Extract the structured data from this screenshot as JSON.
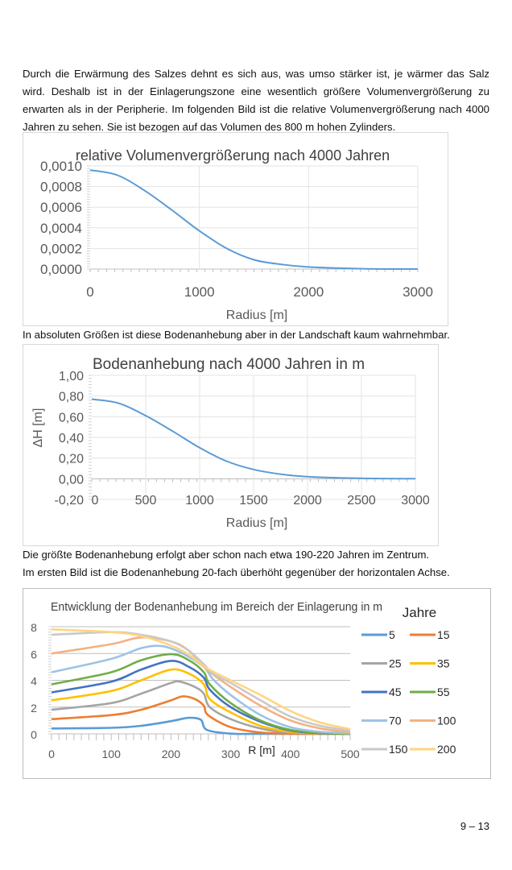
{
  "paragraph1": "Durch die Erwärmung des Salzes dehnt es sich aus, was umso stärker ist, je wärmer das Salz wird. Deshalb ist in der Einlagerungszone eine wesentlich größere Volumenvergrößerung zu erwarten als in der Peripherie. Im folgenden Bild ist die relative Volumenvergrößerung nach 4000 Jahren zu sehen. Sie ist bezogen auf das Volumen des 800 m hohen Zylinders.",
  "paragraph2": "In absoluten Größen ist diese Bodenanhebung aber in der Landschaft kaum wahrnehmbar.",
  "paragraph3a": "Die größte Bodenanhebung erfolgt aber schon nach etwa 190-220 Jahren im Zentrum.",
  "paragraph3b": "Im ersten Bild ist die Bodenanhebung 20-fach überhöht gegenüber der horizontalen Achse.",
  "page_number": "9 – 13",
  "chart_data": [
    {
      "type": "line",
      "title": "relative Volumenvergrößerung  nach 4000 Jahren",
      "xlabel": "Radius [m]",
      "ylabel": "",
      "xlim": [
        0,
        3000
      ],
      "ylim": [
        0,
        0.001
      ],
      "xticks": [
        "0",
        "1000",
        "2000",
        "3000"
      ],
      "yticks": [
        "0,0000",
        "0,0002",
        "0,0004",
        "0,0006",
        "0,0008",
        "0,0010"
      ],
      "grid": true,
      "color": "#5b9bd5",
      "x": [
        0,
        250,
        500,
        750,
        1000,
        1250,
        1500,
        1750,
        2000,
        2500,
        3000
      ],
      "y": [
        0.00096,
        0.00091,
        0.00076,
        0.00057,
        0.00037,
        0.0002,
        9e-05,
        4.5e-05,
        2e-05,
        3e-06,
        0
      ]
    },
    {
      "type": "line",
      "title": "Bodenanhebung  nach 4000 Jahren in m",
      "xlabel": "Radius [m]",
      "ylabel": "ΔH [m]",
      "xlim": [
        0,
        3000
      ],
      "ylim": [
        -0.2,
        1.0
      ],
      "xticks": [
        "0",
        "500",
        "1000",
        "1500",
        "2000",
        "2500",
        "3000"
      ],
      "yticks": [
        "-0,20",
        "0,00",
        "0,20",
        "0,40",
        "0,60",
        "0,80",
        "1,00"
      ],
      "grid": true,
      "color": "#5b9bd5",
      "x": [
        0,
        250,
        500,
        750,
        1000,
        1250,
        1500,
        1750,
        2000,
        2500,
        3000
      ],
      "y": [
        0.77,
        0.73,
        0.61,
        0.46,
        0.3,
        0.17,
        0.09,
        0.045,
        0.02,
        0.004,
        0
      ]
    },
    {
      "type": "line",
      "title": "Entwicklung der Bodenanhebung  im Bereich der Einlagerung in m",
      "xlabel": "R [m]",
      "ylabel": "",
      "xlim": [
        0,
        500
      ],
      "ylim": [
        0,
        8
      ],
      "xticks": [
        "0",
        "100",
        "200",
        "300",
        "400",
        "500"
      ],
      "yticks": [
        "0",
        "2",
        "4",
        "6",
        "8"
      ],
      "grid": true,
      "legend_title": "Jahre",
      "legend": "right",
      "series": [
        {
          "name": "5",
          "color": "#5b9bd5",
          "x": [
            0,
            100,
            150,
            200,
            230,
            250,
            260,
            300,
            350,
            500
          ],
          "y": [
            0.4,
            0.45,
            0.6,
            0.95,
            1.2,
            1.05,
            0.3,
            0.02,
            0,
            0
          ]
        },
        {
          "name": "15",
          "color": "#ed7d31",
          "x": [
            0,
            100,
            150,
            200,
            220,
            240,
            255,
            262,
            300,
            350,
            400,
            500
          ],
          "y": [
            1.1,
            1.4,
            1.8,
            2.5,
            2.8,
            2.6,
            2.1,
            1.4,
            0.5,
            0.1,
            0.02,
            0
          ]
        },
        {
          "name": "25",
          "color": "#a5a5a5",
          "x": [
            0,
            100,
            150,
            200,
            215,
            240,
            255,
            265,
            300,
            350,
            400,
            500
          ],
          "y": [
            1.8,
            2.3,
            3.0,
            3.8,
            3.9,
            3.5,
            3.0,
            2.0,
            1.1,
            0.4,
            0.1,
            0
          ]
        },
        {
          "name": "35",
          "color": "#ffc000",
          "x": [
            0,
            100,
            150,
            200,
            230,
            255,
            265,
            300,
            350,
            400,
            450,
            500
          ],
          "y": [
            2.5,
            3.2,
            4.0,
            4.8,
            4.5,
            3.7,
            2.6,
            1.6,
            0.6,
            0.15,
            0.03,
            0
          ]
        },
        {
          "name": "45",
          "color": "#4472c4",
          "x": [
            0,
            100,
            150,
            200,
            230,
            255,
            265,
            300,
            350,
            400,
            450,
            500
          ],
          "y": [
            3.1,
            3.9,
            4.8,
            5.45,
            5.0,
            4.2,
            3.3,
            2.0,
            0.9,
            0.25,
            0.05,
            0
          ]
        },
        {
          "name": "55",
          "color": "#70ad47",
          "x": [
            0,
            100,
            150,
            200,
            230,
            255,
            265,
            300,
            350,
            400,
            450,
            500
          ],
          "y": [
            3.7,
            4.6,
            5.5,
            5.95,
            5.5,
            4.6,
            3.7,
            2.3,
            1.0,
            0.3,
            0.07,
            0
          ]
        },
        {
          "name": "70",
          "color": "#9dc3e6",
          "x": [
            0,
            100,
            150,
            185,
            220,
            255,
            270,
            300,
            350,
            400,
            450,
            500
          ],
          "y": [
            4.6,
            5.6,
            6.4,
            6.55,
            6.0,
            5.0,
            4.1,
            2.9,
            1.4,
            0.5,
            0.15,
            0.05
          ]
        },
        {
          "name": "100",
          "color": "#f4b183",
          "x": [
            0,
            100,
            150,
            200,
            230,
            260,
            300,
            350,
            400,
            450,
            500
          ],
          "y": [
            6.0,
            6.7,
            7.2,
            6.9,
            6.2,
            4.8,
            3.5,
            2.1,
            1.0,
            0.4,
            0.12
          ]
        },
        {
          "name": "150",
          "color": "#c9c9c9",
          "x": [
            0,
            100,
            150,
            200,
            230,
            255,
            270,
            300,
            350,
            400,
            450,
            500
          ],
          "y": [
            7.4,
            7.6,
            7.4,
            6.9,
            6.2,
            5.2,
            4.5,
            3.8,
            2.5,
            1.3,
            0.6,
            0.25
          ]
        },
        {
          "name": "200",
          "color": "#ffd580",
          "x": [
            0,
            100,
            150,
            200,
            230,
            260,
            300,
            350,
            400,
            450,
            500
          ],
          "y": [
            7.8,
            7.6,
            7.3,
            6.6,
            5.9,
            4.9,
            4.0,
            2.9,
            1.7,
            0.85,
            0.35
          ]
        }
      ]
    }
  ]
}
